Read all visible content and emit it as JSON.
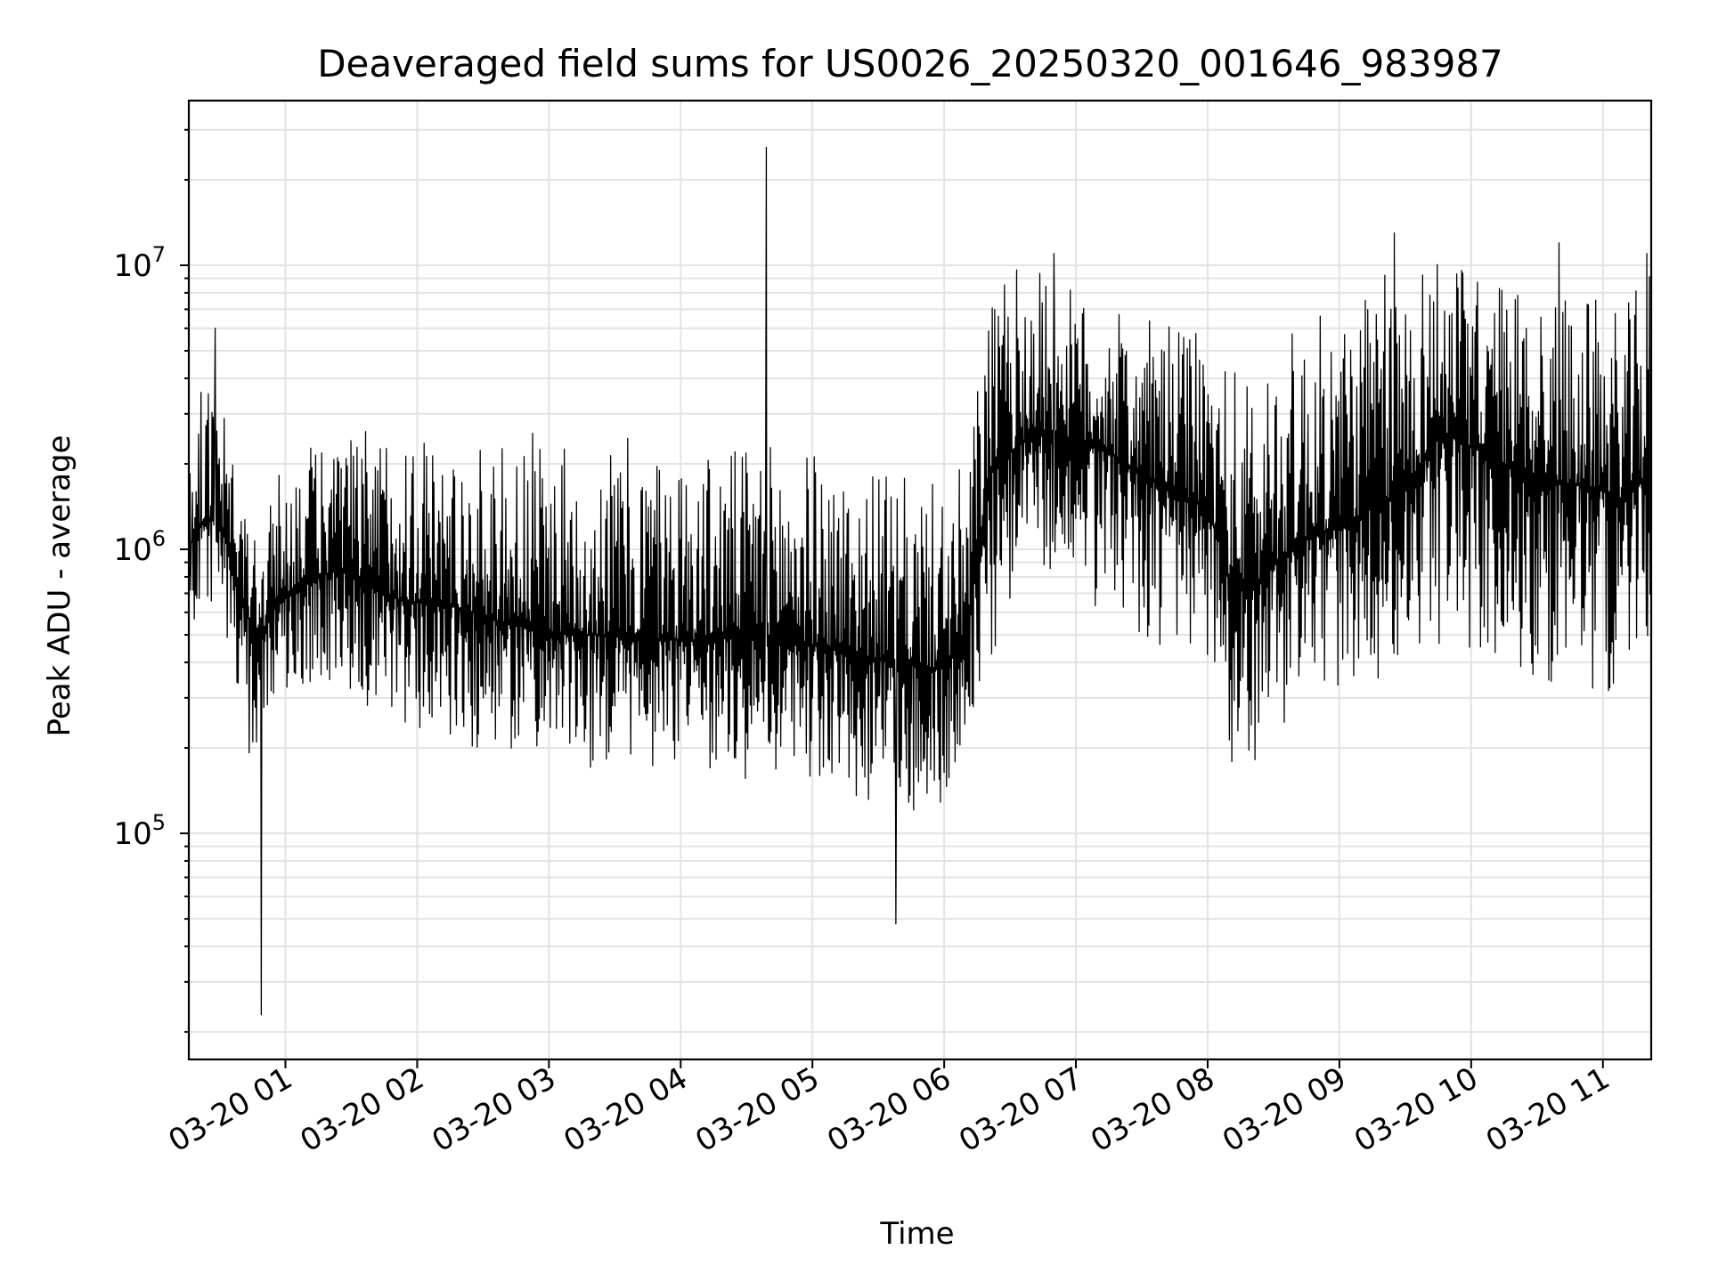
{
  "chart_data": {
    "type": "line",
    "title": "Deaveraged field sums for US0026_20250320_001646_983987",
    "xlabel": "Time",
    "ylabel": "Peak ADU - average",
    "yscale": "log",
    "ylim": [
      16000,
      38000000
    ],
    "xlim": [
      "2025-03-20 00:16",
      "2025-03-20 11:22"
    ],
    "grid": true,
    "line_color": "#000000",
    "x_ticks": [
      {
        "t": "2025-03-20 01:00",
        "label": "03-20 01"
      },
      {
        "t": "2025-03-20 02:00",
        "label": "03-20 02"
      },
      {
        "t": "2025-03-20 03:00",
        "label": "03-20 03"
      },
      {
        "t": "2025-03-20 04:00",
        "label": "03-20 04"
      },
      {
        "t": "2025-03-20 05:00",
        "label": "03-20 05"
      },
      {
        "t": "2025-03-20 06:00",
        "label": "03-20 06"
      },
      {
        "t": "2025-03-20 07:00",
        "label": "03-20 07"
      },
      {
        "t": "2025-03-20 08:00",
        "label": "03-20 08"
      },
      {
        "t": "2025-03-20 09:00",
        "label": "03-20 09"
      },
      {
        "t": "2025-03-20 10:00",
        "label": "03-20 10"
      },
      {
        "t": "2025-03-20 11:00",
        "label": "03-20 11"
      }
    ],
    "y_ticks": [
      {
        "value": 100000,
        "base": "10",
        "exp": "5"
      },
      {
        "value": 1000000,
        "base": "10",
        "exp": "6"
      },
      {
        "value": 10000000,
        "base": "10",
        "exp": "7"
      }
    ],
    "series": [
      {
        "x": [
          "2025-03-20 00:16",
          "2025-03-20 00:20",
          "2025-03-20 00:24",
          "2025-03-20 00:28",
          "2025-03-20 00:32",
          "2025-03-20 00:36",
          "2025-03-20 00:40",
          "2025-03-20 00:44",
          "2025-03-20 00:48",
          "2025-03-20 00:52",
          "2025-03-20 00:56",
          "2025-03-20 01:05",
          "2025-03-20 01:15",
          "2025-03-20 01:25",
          "2025-03-20 01:35",
          "2025-03-20 01:45",
          "2025-03-20 01:55",
          "2025-03-20 02:10",
          "2025-03-20 02:25",
          "2025-03-20 02:40",
          "2025-03-20 02:55",
          "2025-03-20 03:10",
          "2025-03-20 03:25",
          "2025-03-20 03:40",
          "2025-03-20 03:55",
          "2025-03-20 04:10",
          "2025-03-20 04:25",
          "2025-03-20 04:40",
          "2025-03-20 04:55",
          "2025-03-20 05:10",
          "2025-03-20 05:25",
          "2025-03-20 05:40",
          "2025-03-20 05:55",
          "2025-03-20 06:10",
          "2025-03-20 06:20",
          "2025-03-20 06:30",
          "2025-03-20 06:40",
          "2025-03-20 06:50",
          "2025-03-20 07:00",
          "2025-03-20 07:15",
          "2025-03-20 07:30",
          "2025-03-20 07:45",
          "2025-03-20 08:00",
          "2025-03-20 08:10",
          "2025-03-20 08:20",
          "2025-03-20 08:30",
          "2025-03-20 08:45",
          "2025-03-20 09:00",
          "2025-03-20 09:15",
          "2025-03-20 09:30",
          "2025-03-20 09:45",
          "2025-03-20 10:00",
          "2025-03-20 10:15",
          "2025-03-20 10:30",
          "2025-03-20 10:45",
          "2025-03-20 11:00",
          "2025-03-20 11:10",
          "2025-03-20 11:22"
        ],
        "baseline": [
          1000000,
          1200000,
          1300000,
          1250000,
          1100000,
          900000,
          650000,
          550000,
          500000,
          550000,
          650000,
          750000,
          800000,
          850000,
          750000,
          700000,
          650000,
          650000,
          600000,
          550000,
          520000,
          500000,
          500000,
          480000,
          480000,
          480000,
          500000,
          500000,
          470000,
          450000,
          420000,
          400000,
          380000,
          450000,
          1800000,
          2200000,
          2500000,
          2600000,
          2400000,
          2200000,
          1800000,
          1600000,
          1400000,
          800000,
          700000,
          900000,
          1100000,
          1200000,
          1400000,
          1600000,
          2600000,
          2300000,
          2000000,
          1800000,
          1700000,
          1600000,
          1500000,
          1900000
        ],
        "upper": [
          2500000,
          3500000,
          4000000,
          3200000,
          3000000,
          2000000,
          1600000,
          1400000,
          1200000,
          1400000,
          1800000,
          2200000,
          2400000,
          2500000,
          2600000,
          2800000,
          3000000,
          2500000,
          2200000,
          2400000,
          2600000,
          2300000,
          2400000,
          2500000,
          2200000,
          2200000,
          2300000,
          2400000,
          2300000,
          2000000,
          1900000,
          1800000,
          1700000,
          2000000,
          7500000,
          9500000,
          10500000,
          9000000,
          8000000,
          7000000,
          6500000,
          6000000,
          5800000,
          4500000,
          4000000,
          5500000,
          6500000,
          7000000,
          9000000,
          10000000,
          12000000,
          9500000,
          9000000,
          8500000,
          8000000,
          7500000,
          7000000,
          10500000
        ],
        "lower": [
          450000,
          500000,
          550000,
          500000,
          450000,
          380000,
          250000,
          180000,
          170000,
          220000,
          300000,
          320000,
          350000,
          300000,
          280000,
          250000,
          230000,
          230000,
          200000,
          190000,
          180000,
          170000,
          170000,
          160000,
          160000,
          160000,
          150000,
          170000,
          150000,
          140000,
          130000,
          120000,
          110000,
          200000,
          400000,
          600000,
          750000,
          700000,
          650000,
          600000,
          500000,
          400000,
          350000,
          180000,
          160000,
          220000,
          280000,
          300000,
          320000,
          350000,
          450000,
          400000,
          380000,
          350000,
          330000,
          320000,
          300000,
          500000
        ]
      }
    ],
    "annotations": [
      {
        "t": "2025-03-20 04:39",
        "value": 26000000,
        "kind": "max spike"
      },
      {
        "t": "2025-03-20 00:49",
        "value": 23000,
        "kind": "min spike"
      },
      {
        "t": "2025-03-20 00:28",
        "value": 6000000,
        "kind": "spike"
      },
      {
        "t": "2025-03-20 05:38",
        "value": 48000,
        "kind": "spike"
      },
      {
        "t": "2025-03-20 06:50",
        "value": 11000000,
        "kind": "spike"
      },
      {
        "t": "2025-03-20 09:25",
        "value": 13000000,
        "kind": "spike"
      },
      {
        "t": "2025-03-20 10:40",
        "value": 12000000,
        "kind": "spike"
      },
      {
        "t": "2025-03-20 11:20",
        "value": 11000000,
        "kind": "spike"
      }
    ]
  }
}
